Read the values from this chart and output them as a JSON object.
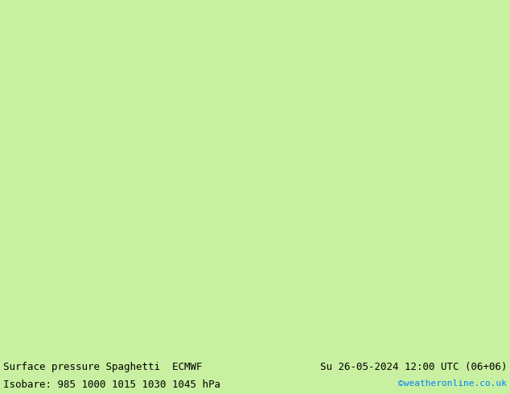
{
  "title_left": "Surface pressure Spaghetti  ECMWF",
  "title_right": "Su 26-05-2024 12:00 UTC (06+06)",
  "subtitle": "Isobare: 985 1000 1015 1030 1045 hPa",
  "credit": "©weatheronline.co.uk",
  "background_land": "#c8f0a0",
  "background_sea": "#e8e8e8",
  "border_color_country": "#505050",
  "border_color_state": "#000000",
  "text_color": "#000000",
  "credit_color": "#0080ff",
  "bottom_bar_color": "#c8f0a0",
  "bottom_text_color": "#000000",
  "figsize": [
    6.34,
    4.9
  ],
  "dpi": 100,
  "map_extent": [
    3.0,
    16.5,
    46.5,
    56.0
  ],
  "isobar_colors": [
    "#808080",
    "#ff0000",
    "#ff8000",
    "#ffd700",
    "#00cc00",
    "#00aaff",
    "#0000cc",
    "#ff00ff",
    "#cc6600",
    "#006600",
    "#aa0000",
    "#ff6699",
    "#00ffff",
    "#666600",
    "#003388",
    "#cc00cc",
    "#880000",
    "#ffaa00",
    "#88ff00",
    "#00ffaa",
    "#404040",
    "#cc2200",
    "#ff9900",
    "#cccc00",
    "#009900",
    "#0088cc",
    "#000088",
    "#cc0099",
    "#884400",
    "#004400",
    "#ff4444",
    "#ff8844",
    "#ffff44",
    "#44ff44",
    "#44ffff",
    "#4444ff",
    "#ff44ff",
    "#884422",
    "#228844",
    "#228888"
  ],
  "title_fontsize": 9,
  "subtitle_fontsize": 9,
  "credit_fontsize": 8
}
